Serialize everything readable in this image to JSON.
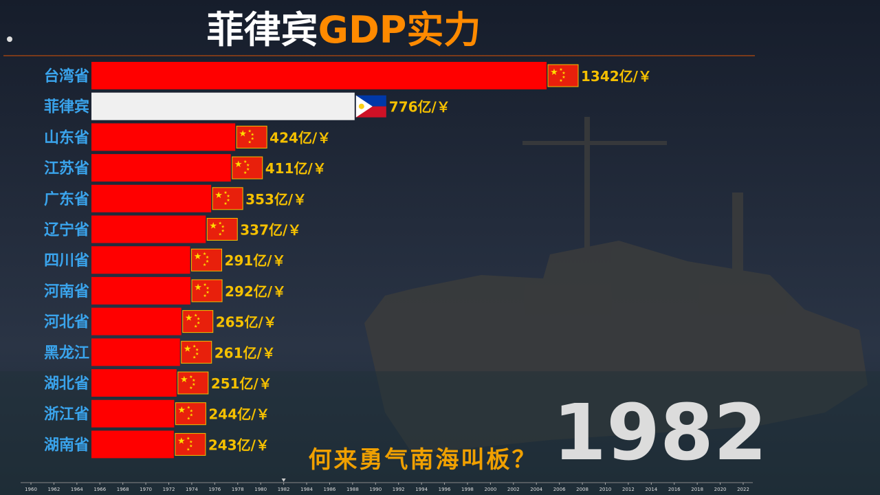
{
  "chart_data": {
    "type": "bar",
    "orientation": "horizontal",
    "title_parts": [
      "菲律宾",
      "GDP实力"
    ],
    "subtitle": "何来勇气南海叫板？",
    "year": "1982",
    "categories": [
      "台湾省",
      "菲律宾",
      "山东省",
      "江苏省",
      "广东省",
      "辽宁省",
      "四川省",
      "河南省",
      "河北省",
      "黑龙江",
      "湖北省",
      "浙江省",
      "湖南省"
    ],
    "values": [
      1342,
      776,
      424,
      411,
      353,
      337,
      291,
      292,
      265,
      261,
      251,
      244,
      243
    ],
    "value_labels": [
      "1342亿/￥",
      "776亿/￥",
      "424亿/￥",
      "411亿/￥",
      "353亿/￥",
      "337亿/￥",
      "291亿/￥",
      "292亿/￥",
      "265亿/￥",
      "261亿/￥",
      "251亿/￥",
      "244亿/￥",
      "243亿/￥"
    ],
    "colors": [
      "#ff0000",
      "#f0f0f0",
      "#ff0000",
      "#ff0000",
      "#ff0000",
      "#ff0000",
      "#ff0000",
      "#ff0000",
      "#ff0000",
      "#ff0000",
      "#ff0000",
      "#ff0000",
      "#ff0000"
    ],
    "flags": [
      "CN",
      "PH",
      "CN",
      "CN",
      "CN",
      "CN",
      "CN",
      "CN",
      "CN",
      "CN",
      "CN",
      "CN",
      "CN"
    ],
    "timeline": {
      "lim": [
        1960,
        2022
      ],
      "current": 1982,
      "ticks": [
        1960,
        1962,
        1964,
        1966,
        1968,
        1970,
        1972,
        1974,
        1976,
        1978,
        1980,
        1982,
        1984,
        1986,
        1988,
        1990,
        1992,
        1994,
        1996,
        1998,
        2000,
        2002,
        2004,
        2006,
        2008,
        2010,
        2012,
        2014,
        2016,
        2018,
        2020,
        2022
      ]
    }
  }
}
